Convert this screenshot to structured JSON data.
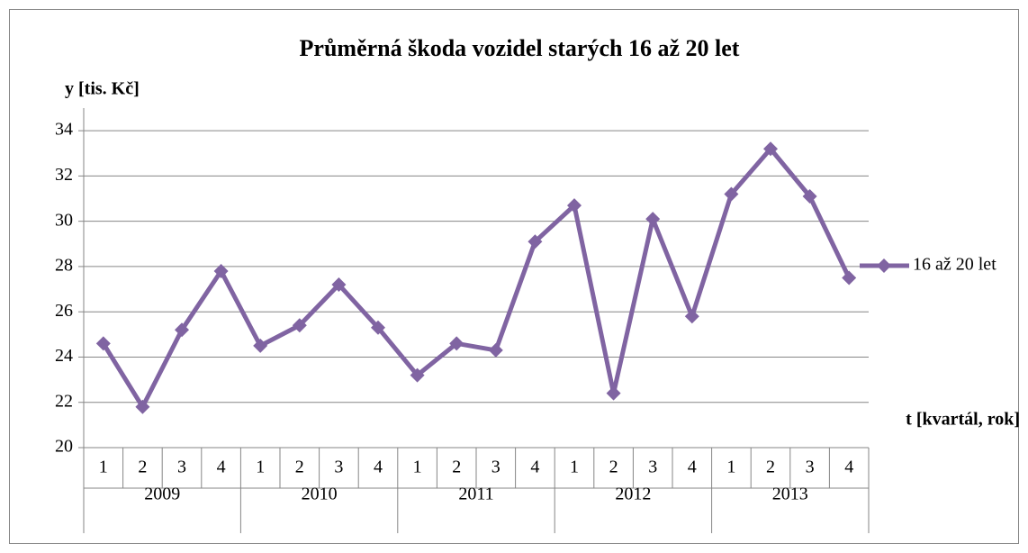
{
  "chart_data": {
    "type": "line",
    "title": "Průměrná škoda vozidel starých 16 až 20 let",
    "y_label": "y [tis. Kč]",
    "x_label": "t [kvartál, rok]",
    "categories": [
      "1",
      "2",
      "3",
      "4",
      "1",
      "2",
      "3",
      "4",
      "1",
      "2",
      "3",
      "4",
      "1",
      "2",
      "3",
      "4",
      "1",
      "2",
      "3",
      "4"
    ],
    "category_groups": [
      "2009",
      "2010",
      "2011",
      "2012",
      "2013"
    ],
    "series": [
      {
        "name": "16 až 20 let",
        "color": "#8064a2",
        "values": [
          24.6,
          21.8,
          25.2,
          27.8,
          24.5,
          25.4,
          27.2,
          25.3,
          23.2,
          24.6,
          24.3,
          29.1,
          30.7,
          22.4,
          30.1,
          25.8,
          31.2,
          33.2,
          31.1,
          27.5
        ]
      }
    ],
    "ylim": [
      20,
      35
    ],
    "yticks": [
      20,
      22,
      24,
      26,
      28,
      30,
      32,
      34
    ],
    "grid": true,
    "legend": "right"
  }
}
